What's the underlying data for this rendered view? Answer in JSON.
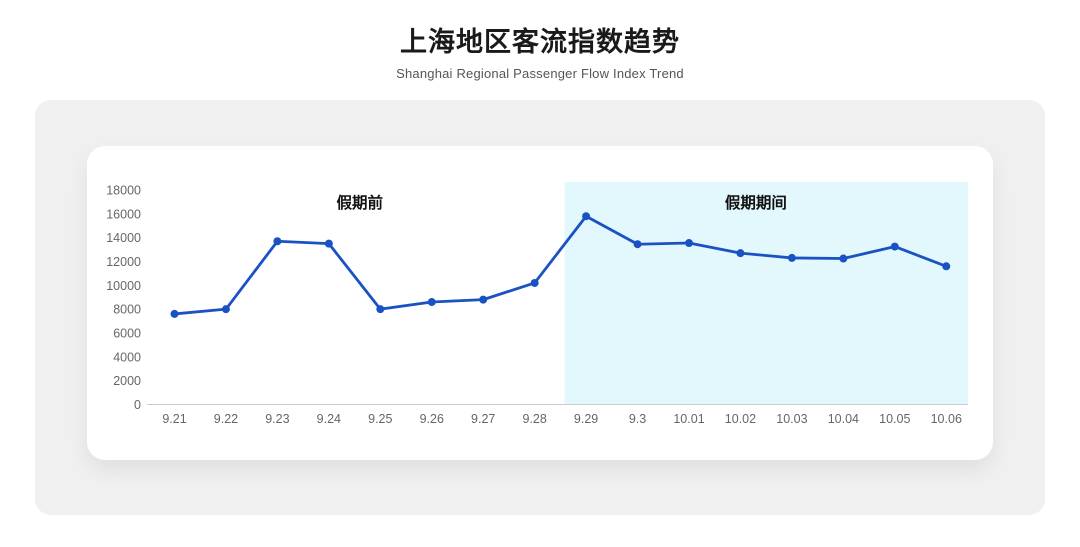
{
  "header": {
    "title": "上海地区客流指数趋势",
    "subtitle": "Shanghai Regional Passenger Flow Index Trend"
  },
  "chart_data": {
    "type": "line",
    "title": "上海地区客流指数趋势",
    "subtitle": "Shanghai Regional Passenger Flow Index Trend",
    "categories": [
      "9.21",
      "9.22",
      "9.23",
      "9.24",
      "9.25",
      "9.26",
      "9.27",
      "9.28",
      "9.29",
      "9.3",
      "10.01",
      "10.02",
      "10.03",
      "10.04",
      "10.05",
      "10.06"
    ],
    "values": [
      7600,
      8000,
      13700,
      13500,
      8000,
      8600,
      8800,
      10200,
      15800,
      13450,
      13550,
      12700,
      12300,
      12250,
      13250,
      11600
    ],
    "xlabel": "",
    "ylabel": "",
    "ylim": [
      0,
      18000
    ],
    "y_ticks": [
      0,
      2000,
      4000,
      6000,
      8000,
      10000,
      12000,
      14000,
      16000,
      18000
    ],
    "grid": false,
    "legend": null,
    "annotations": [
      {
        "label": "假期前",
        "x_index": 3.6,
        "y_value": 16500
      },
      {
        "label": "假期期间",
        "x_index": 11.3,
        "y_value": 16500
      }
    ],
    "highlight_band": {
      "label": "假期期间",
      "from_category": "9.29",
      "to_category": "10.06",
      "color": "#e2f8fd"
    },
    "colors": {
      "line": "#1a52c4",
      "point": "#1a52c4",
      "axis_line": "#cccccc",
      "tick_label": "#666666",
      "annotation_text": "#111111",
      "band": "#e2f8fd"
    }
  }
}
